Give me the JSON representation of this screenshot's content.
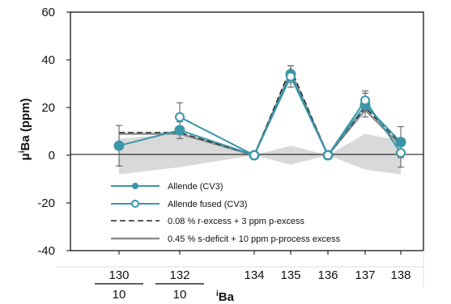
{
  "chart_data": {
    "type": "line",
    "xlabel": "iBa",
    "xlabel_parts": {
      "sup": "i",
      "main": "Ba"
    },
    "ylabel": "μiBa (ppm)",
    "ylabel_parts": {
      "pre": "μ",
      "sup": "i",
      "main": "Ba (ppm)"
    },
    "ylim": [
      -40,
      60
    ],
    "yticks": [
      -40,
      -20,
      0,
      20,
      40,
      60
    ],
    "x_categories": [
      {
        "label": "130",
        "denominator": "10"
      },
      {
        "label": "132",
        "denominator": "10"
      },
      {
        "label": "134"
      },
      {
        "label": "135"
      },
      {
        "label": "136"
      },
      {
        "label": "137"
      },
      {
        "label": "138"
      }
    ],
    "shaded_band": {
      "upper": [
        7,
        9,
        0,
        4,
        0,
        9,
        6
      ],
      "lower": [
        -8,
        -5,
        0,
        -4,
        0,
        -6,
        -8
      ],
      "color": "#d9d9d9"
    },
    "series": [
      {
        "name": "Allende (CV3)",
        "style": "solid-filled-marker",
        "color": "#3a96a8",
        "values": [
          4,
          10.5,
          0,
          34,
          0,
          21,
          5.5
        ],
        "errors": [
          8.5,
          3.5,
          0,
          3.5,
          0,
          5,
          6.5
        ]
      },
      {
        "name": "Allende fused (CV3)",
        "style": "solid-open-marker",
        "color": "#3a96a8",
        "values": [
          null,
          16,
          0,
          33,
          0,
          23,
          1
        ],
        "errors": [
          null,
          6,
          0,
          4.5,
          0,
          4,
          6
        ]
      },
      {
        "name": "0.08 % r-excess + 3 ppm p-excess",
        "style": "dashed",
        "color": "#222222",
        "values": [
          9.5,
          9.5,
          0,
          36.5,
          0,
          20,
          5
        ]
      },
      {
        "name": "0.45 % s-deficit + 10 ppm p-process excess",
        "style": "solid-gray",
        "color": "#8c8c8c",
        "values": [
          9,
          9,
          0,
          35,
          0,
          19,
          4
        ]
      }
    ],
    "grid": false,
    "legend_position": "lower-left"
  }
}
